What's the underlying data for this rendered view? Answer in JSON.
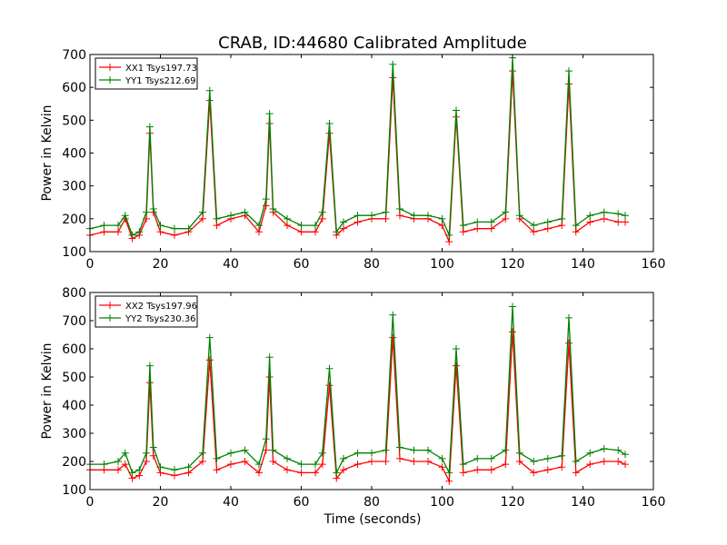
{
  "figure": {
    "title": "CRAB, ID:44680 Calibrated Amplitude",
    "xlabel": "Time (seconds)"
  },
  "chart_data": [
    {
      "type": "line",
      "title": "CRAB, ID:44680 Calibrated Amplitude",
      "xlabel": "",
      "ylabel": "Power in Kelvin",
      "xlim": [
        0,
        160
      ],
      "ylim": [
        100,
        700
      ],
      "xticks": [
        "0",
        "20",
        "40",
        "60",
        "80",
        "100",
        "120",
        "140",
        "160"
      ],
      "yticks": [
        "100",
        "200",
        "300",
        "400",
        "500",
        "600",
        "700"
      ],
      "grid": false,
      "legend_position": "top-left",
      "series": [
        {
          "name": "XX1 Tsys197.73",
          "color": "#ff0000",
          "marker": "plus",
          "x": [
            0,
            4,
            8,
            10,
            12,
            14,
            16,
            17,
            18,
            20,
            24,
            28,
            32,
            34,
            36,
            40,
            44,
            48,
            50,
            51,
            52,
            56,
            60,
            64,
            66,
            68,
            70,
            72,
            76,
            80,
            84,
            86,
            88,
            92,
            96,
            100,
            102,
            104,
            106,
            110,
            114,
            118,
            120,
            122,
            126,
            130,
            134,
            136,
            138,
            142,
            146,
            150,
            152
          ],
          "y": [
            150,
            160,
            160,
            200,
            140,
            150,
            200,
            460,
            220,
            160,
            150,
            160,
            200,
            560,
            180,
            200,
            210,
            160,
            240,
            490,
            220,
            180,
            160,
            160,
            200,
            460,
            150,
            170,
            190,
            200,
            200,
            630,
            210,
            200,
            200,
            180,
            130,
            510,
            160,
            170,
            170,
            200,
            650,
            200,
            160,
            170,
            180,
            610,
            160,
            190,
            200,
            190,
            190
          ]
        },
        {
          "name": "YY1 Tsys212.69",
          "color": "#008000",
          "marker": "plus",
          "x": [
            0,
            4,
            8,
            10,
            12,
            14,
            16,
            17,
            18,
            20,
            24,
            28,
            32,
            34,
            36,
            40,
            44,
            48,
            50,
            51,
            52,
            56,
            60,
            64,
            66,
            68,
            70,
            72,
            76,
            80,
            84,
            86,
            88,
            92,
            96,
            100,
            102,
            104,
            106,
            110,
            114,
            118,
            120,
            122,
            126,
            130,
            134,
            136,
            138,
            142,
            146,
            150,
            152
          ],
          "y": [
            170,
            180,
            180,
            210,
            150,
            160,
            220,
            480,
            230,
            180,
            170,
            170,
            220,
            590,
            200,
            210,
            220,
            180,
            260,
            520,
            230,
            200,
            180,
            180,
            220,
            490,
            160,
            190,
            210,
            210,
            220,
            670,
            230,
            210,
            210,
            200,
            150,
            530,
            180,
            190,
            190,
            220,
            690,
            210,
            180,
            190,
            200,
            650,
            180,
            210,
            220,
            215,
            210
          ]
        }
      ]
    },
    {
      "type": "line",
      "title": "",
      "xlabel": "Time (seconds)",
      "ylabel": "Power in Kelvin",
      "xlim": [
        0,
        160
      ],
      "ylim": [
        100,
        800
      ],
      "xticks": [
        "0",
        "20",
        "40",
        "60",
        "80",
        "100",
        "120",
        "140",
        "160"
      ],
      "yticks": [
        "100",
        "200",
        "300",
        "400",
        "500",
        "600",
        "700",
        "800"
      ],
      "grid": false,
      "legend_position": "top-left",
      "series": [
        {
          "name": "XX2 Tsys197.96",
          "color": "#ff0000",
          "marker": "plus",
          "x": [
            0,
            4,
            8,
            10,
            12,
            14,
            16,
            17,
            18,
            20,
            24,
            28,
            32,
            34,
            36,
            40,
            44,
            48,
            50,
            51,
            52,
            56,
            60,
            64,
            66,
            68,
            70,
            72,
            76,
            80,
            84,
            86,
            88,
            92,
            96,
            100,
            102,
            104,
            106,
            110,
            114,
            118,
            120,
            122,
            126,
            130,
            134,
            136,
            138,
            142,
            146,
            150,
            152
          ],
          "y": [
            170,
            170,
            170,
            190,
            140,
            150,
            200,
            480,
            220,
            160,
            150,
            160,
            200,
            560,
            170,
            190,
            200,
            160,
            240,
            500,
            200,
            170,
            160,
            160,
            190,
            470,
            140,
            170,
            190,
            200,
            200,
            640,
            210,
            200,
            200,
            180,
            130,
            540,
            160,
            170,
            170,
            190,
            660,
            200,
            160,
            170,
            180,
            620,
            160,
            190,
            200,
            200,
            190
          ]
        },
        {
          "name": "YY2 Tsys230.36",
          "color": "#008000",
          "marker": "plus",
          "x": [
            0,
            4,
            8,
            10,
            12,
            14,
            16,
            17,
            18,
            20,
            24,
            28,
            32,
            34,
            36,
            40,
            44,
            48,
            50,
            51,
            52,
            56,
            60,
            64,
            66,
            68,
            70,
            72,
            76,
            80,
            84,
            86,
            88,
            92,
            96,
            100,
            102,
            104,
            106,
            110,
            114,
            118,
            120,
            122,
            126,
            130,
            134,
            136,
            138,
            142,
            146,
            150,
            152
          ],
          "y": [
            190,
            190,
            200,
            230,
            160,
            170,
            230,
            540,
            250,
            180,
            170,
            180,
            230,
            640,
            210,
            230,
            240,
            190,
            280,
            570,
            240,
            210,
            190,
            190,
            230,
            530,
            160,
            210,
            230,
            230,
            240,
            720,
            250,
            240,
            240,
            210,
            160,
            600,
            190,
            210,
            210,
            240,
            750,
            230,
            200,
            210,
            220,
            710,
            200,
            230,
            245,
            240,
            225
          ]
        }
      ]
    }
  ]
}
